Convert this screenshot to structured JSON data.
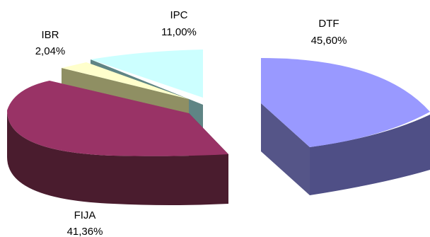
{
  "chart_data": {
    "type": "pie",
    "style": "3d-exploded",
    "title": "",
    "slices": [
      {
        "name": "DTF",
        "value_label": "45,60%",
        "value": 45.6,
        "color": "#9999FF"
      },
      {
        "name": "FIJA",
        "value_label": "41,36%",
        "value": 41.36,
        "color": "#993366"
      },
      {
        "name": "IBR",
        "value_label": "2,04%",
        "value": 2.04,
        "color": "#FFFFCC"
      },
      {
        "name": "IPC",
        "value_label": "11,00%",
        "value": 11.0,
        "color": "#CCFFFF"
      }
    ]
  }
}
